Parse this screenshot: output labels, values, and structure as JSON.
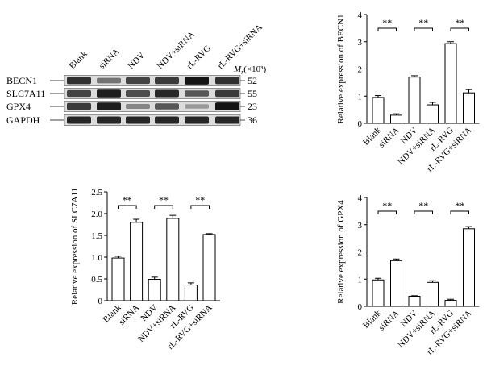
{
  "western_blot": {
    "lanes": [
      "Blank",
      "siRNA",
      "NDV",
      "NDV+siRNA",
      "rL-RVG",
      "rL-RVG+siRNA"
    ],
    "mr_label_main": "M",
    "mr_label_sub": "r",
    "mr_label_unit": "(×10³)",
    "rows": [
      {
        "name": "BECN1",
        "mr": "52",
        "intensity": [
          0.8,
          0.45,
          0.7,
          0.75,
          0.95,
          0.8
        ]
      },
      {
        "name": "SLC7A11",
        "mr": "55",
        "intensity": [
          0.7,
          0.9,
          0.65,
          0.85,
          0.6,
          0.75
        ]
      },
      {
        "name": "GPX4",
        "mr": "23",
        "intensity": [
          0.75,
          0.9,
          0.35,
          0.6,
          0.25,
          0.95
        ]
      },
      {
        "name": "GAPDH",
        "mr": "36",
        "intensity": [
          0.85,
          0.85,
          0.85,
          0.85,
          0.85,
          0.85
        ]
      }
    ]
  },
  "chart_data": [
    {
      "id": "becn1",
      "type": "bar",
      "categories": [
        "Blank",
        "siRNA",
        "NDV",
        "NDV+siRNA",
        "rL-RVG",
        "rL-RVG+siRNA"
      ],
      "values": [
        0.95,
        0.3,
        1.7,
        0.68,
        2.93,
        1.12
      ],
      "errors": [
        0.07,
        0.05,
        0.05,
        0.09,
        0.07,
        0.12
      ],
      "ylabel": "Relative expression of BECN1",
      "ylim": [
        0,
        4
      ],
      "yticks": [
        "0",
        "1",
        "2",
        "3",
        "4"
      ],
      "significance": [
        {
          "pair": [
            0,
            1
          ],
          "label": "**"
        },
        {
          "pair": [
            2,
            3
          ],
          "label": "**"
        },
        {
          "pair": [
            4,
            5
          ],
          "label": "**"
        }
      ]
    },
    {
      "id": "slc7a11",
      "type": "bar",
      "categories": [
        "Blank",
        "siRNA",
        "NDV",
        "NDV+siRNA",
        "rL-RVG",
        "rL-RVG+siRNA"
      ],
      "values": [
        0.98,
        1.8,
        0.49,
        1.89,
        0.36,
        1.52
      ],
      "errors": [
        0.04,
        0.07,
        0.05,
        0.07,
        0.05,
        0.02
      ],
      "ylabel": "Relative expression of SLC7A11",
      "ylim": [
        0,
        2.5
      ],
      "yticks": [
        "0",
        "0.5",
        "1.0",
        "1.5",
        "2.0",
        "2.5"
      ],
      "significance": [
        {
          "pair": [
            0,
            1
          ],
          "label": "**"
        },
        {
          "pair": [
            2,
            3
          ],
          "label": "**"
        },
        {
          "pair": [
            4,
            5
          ],
          "label": "**"
        }
      ]
    },
    {
      "id": "gpx4",
      "type": "bar",
      "categories": [
        "Blank",
        "siRNA",
        "NDV",
        "NDV+siRNA",
        "rL-RVG",
        "rL-RVG+siRNA"
      ],
      "values": [
        0.97,
        1.68,
        0.37,
        0.88,
        0.22,
        2.85
      ],
      "errors": [
        0.06,
        0.06,
        0.02,
        0.06,
        0.04,
        0.08
      ],
      "ylabel": "Relative expression of GPX4",
      "ylim": [
        0,
        4
      ],
      "yticks": [
        "0",
        "1",
        "2",
        "3",
        "4"
      ],
      "significance": [
        {
          "pair": [
            0,
            1
          ],
          "label": "**"
        },
        {
          "pair": [
            2,
            3
          ],
          "label": "**"
        },
        {
          "pair": [
            4,
            5
          ],
          "label": "**"
        }
      ]
    }
  ]
}
